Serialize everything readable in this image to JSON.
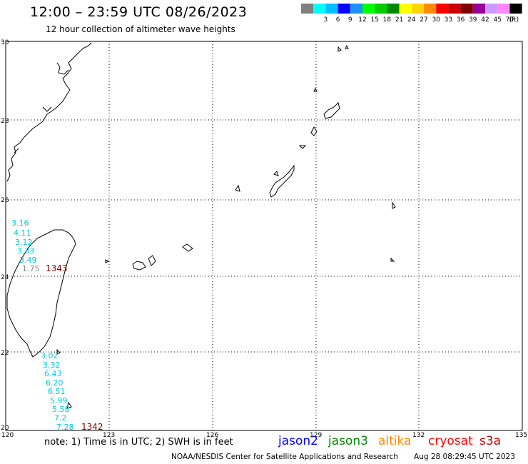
{
  "title": "12:00 – 23:59 UTC 08/26/2023",
  "subtitle": "12 hour collection of altimeter wave heights",
  "colorbar": {
    "unit": "(ft)",
    "bins": [
      {
        "label": "",
        "color": "#808080"
      },
      {
        "label": "3",
        "color": "#00ffff"
      },
      {
        "label": "6",
        "color": "#00bfff"
      },
      {
        "label": "9",
        "color": "#0000ff"
      },
      {
        "label": "12",
        "color": "#1e90ff"
      },
      {
        "label": "15",
        "color": "#00ff00"
      },
      {
        "label": "18",
        "color": "#00cc00"
      },
      {
        "label": "21",
        "color": "#008800"
      },
      {
        "label": "24",
        "color": "#ffff00"
      },
      {
        "label": "27",
        "color": "#ffd700"
      },
      {
        "label": "30",
        "color": "#ff8c00"
      },
      {
        "label": "33",
        "color": "#ff0000"
      },
      {
        "label": "36",
        "color": "#cc0000"
      },
      {
        "label": "39",
        "color": "#800000"
      },
      {
        "label": "42",
        "color": "#990099"
      },
      {
        "label": "45",
        "color": "#cc99ff"
      },
      {
        "label": "70",
        "color": "#ff88ff"
      },
      {
        "label": "",
        "color": "#000000"
      }
    ]
  },
  "axes": {
    "lon_labels": [
      "120",
      "123",
      "126",
      "129",
      "132",
      "135"
    ],
    "lat_labels": [
      "20",
      "22",
      "24",
      "26",
      "28",
      "30"
    ]
  },
  "observations": [
    {
      "value": "3.16",
      "color": "#00ccdd"
    },
    {
      "value": "4.11",
      "color": "#00ccdd"
    },
    {
      "value": "3.12",
      "color": "#00ccdd"
    },
    {
      "value": "3.33",
      "color": "#00ccdd"
    },
    {
      "value": "3.49",
      "color": "#00ccdd"
    },
    {
      "value": "1.75",
      "color": "#808080"
    },
    {
      "value": "1343",
      "color": "#800000"
    },
    {
      "value": "3.02",
      "color": "#00ccdd"
    },
    {
      "value": "3.32",
      "color": "#00ccdd"
    },
    {
      "value": "6.43",
      "color": "#00ccdd"
    },
    {
      "value": "6.20",
      "color": "#00ccdd"
    },
    {
      "value": "6.51",
      "color": "#00ccdd"
    },
    {
      "value": "5.99",
      "color": "#00ccdd"
    },
    {
      "value": "5.58",
      "color": "#00ccdd"
    },
    {
      "value": "7.2",
      "color": "#00ccdd"
    },
    {
      "value": "7.28",
      "color": "#00ccdd"
    },
    {
      "value": "1342",
      "color": "#800000"
    }
  ],
  "footer": {
    "note": "note:  1) Time is in UTC; 2) SWH is in feet",
    "satellites": [
      {
        "name": "jason2",
        "color": "#0000ff"
      },
      {
        "name": "jason3",
        "color": "#008800"
      },
      {
        "name": "altika",
        "color": "#ff8c00"
      },
      {
        "name": "cryosat",
        "color": "#ff0000"
      },
      {
        "name": "s3a",
        "color": "#cc0000"
      }
    ],
    "credit": "NOAA/NESDIS Center for Satellite Applications and Research",
    "timestamp": "Aug 28 08:29:45 UTC 2023"
  }
}
